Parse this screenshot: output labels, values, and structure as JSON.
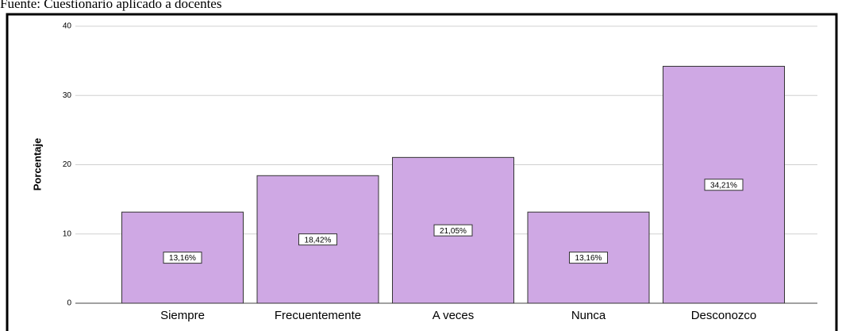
{
  "chart_data": {
    "type": "bar",
    "source": "Fuente: Cuestionario aplicado a docentes",
    "y_label": "Porcentaje",
    "categories": [
      "Siempre",
      "Frecuentemente",
      "A veces",
      "Nunca",
      "Desconozco"
    ],
    "values": [
      13.16,
      18.42,
      21.05,
      13.16,
      34.21
    ],
    "value_labels": [
      "13,16%",
      "18,42%",
      "21,05%",
      "13,16%",
      "34,21%"
    ],
    "color": "#cfa8e4",
    "ylim": [
      0,
      40
    ],
    "yticks": [
      0,
      10,
      20,
      30,
      40
    ],
    "grid": true
  }
}
